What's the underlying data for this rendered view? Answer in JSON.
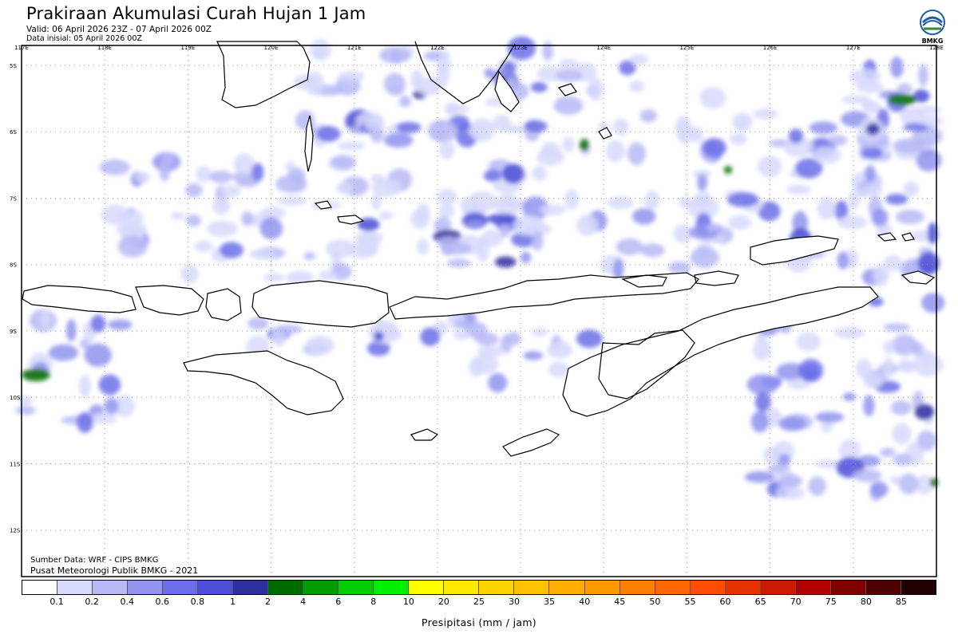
{
  "header": {
    "title": "Prakiraan Akumulasi Curah Hujan 1 Jam",
    "valid": "Valid: 06 April 2026 23Z - 07 April 2026 00Z",
    "initial": "Data inisial: 05 April 2026 00Z"
  },
  "logo": {
    "text": "BMKG",
    "icon": "bmkg-logo-icon"
  },
  "map": {
    "lon_labels": [
      "117E",
      "118E",
      "119E",
      "120E",
      "121E",
      "122E",
      "123E",
      "124E",
      "125E",
      "126E",
      "127E",
      "128E"
    ],
    "lat_labels": [
      "5S",
      "6S",
      "7S",
      "8S",
      "9S",
      "10S",
      "11S",
      "12S"
    ],
    "lon_range": [
      117,
      128
    ],
    "lat_range": [
      -4.7,
      -12.7
    ],
    "grid": "dotted",
    "field": "precipitation (mm / jam)"
  },
  "footer": {
    "source": "Sumber Data: WRF - CIPS BMKG",
    "publisher": "Pusat Meteorologi Publik BMKG - 2021"
  },
  "colorbar": {
    "ticks": [
      "0.1",
      "0.2",
      "0.4",
      "0.6",
      "0.8",
      "1",
      "2",
      "4",
      "6",
      "8",
      "10",
      "20",
      "25",
      "30",
      "35",
      "40",
      "45",
      "50",
      "55",
      "60",
      "65",
      "70",
      "75",
      "80",
      "85"
    ],
    "colors": [
      "#ffffff",
      "#d7d9fb",
      "#b7b9f5",
      "#9193ef",
      "#6b6ee8",
      "#4b4ed6",
      "#2d2f9e",
      "#006b00",
      "#009b00",
      "#00cc00",
      "#00f000",
      "#ffff00",
      "#ffe800",
      "#ffd500",
      "#ffc200",
      "#ffad00",
      "#ff9900",
      "#ff7f00",
      "#ff6600",
      "#ff4d00",
      "#e63300",
      "#cc1a00",
      "#b30000",
      "#800000",
      "#4d0000",
      "#200000"
    ],
    "label": "Presipitasi (mm / jam)"
  }
}
